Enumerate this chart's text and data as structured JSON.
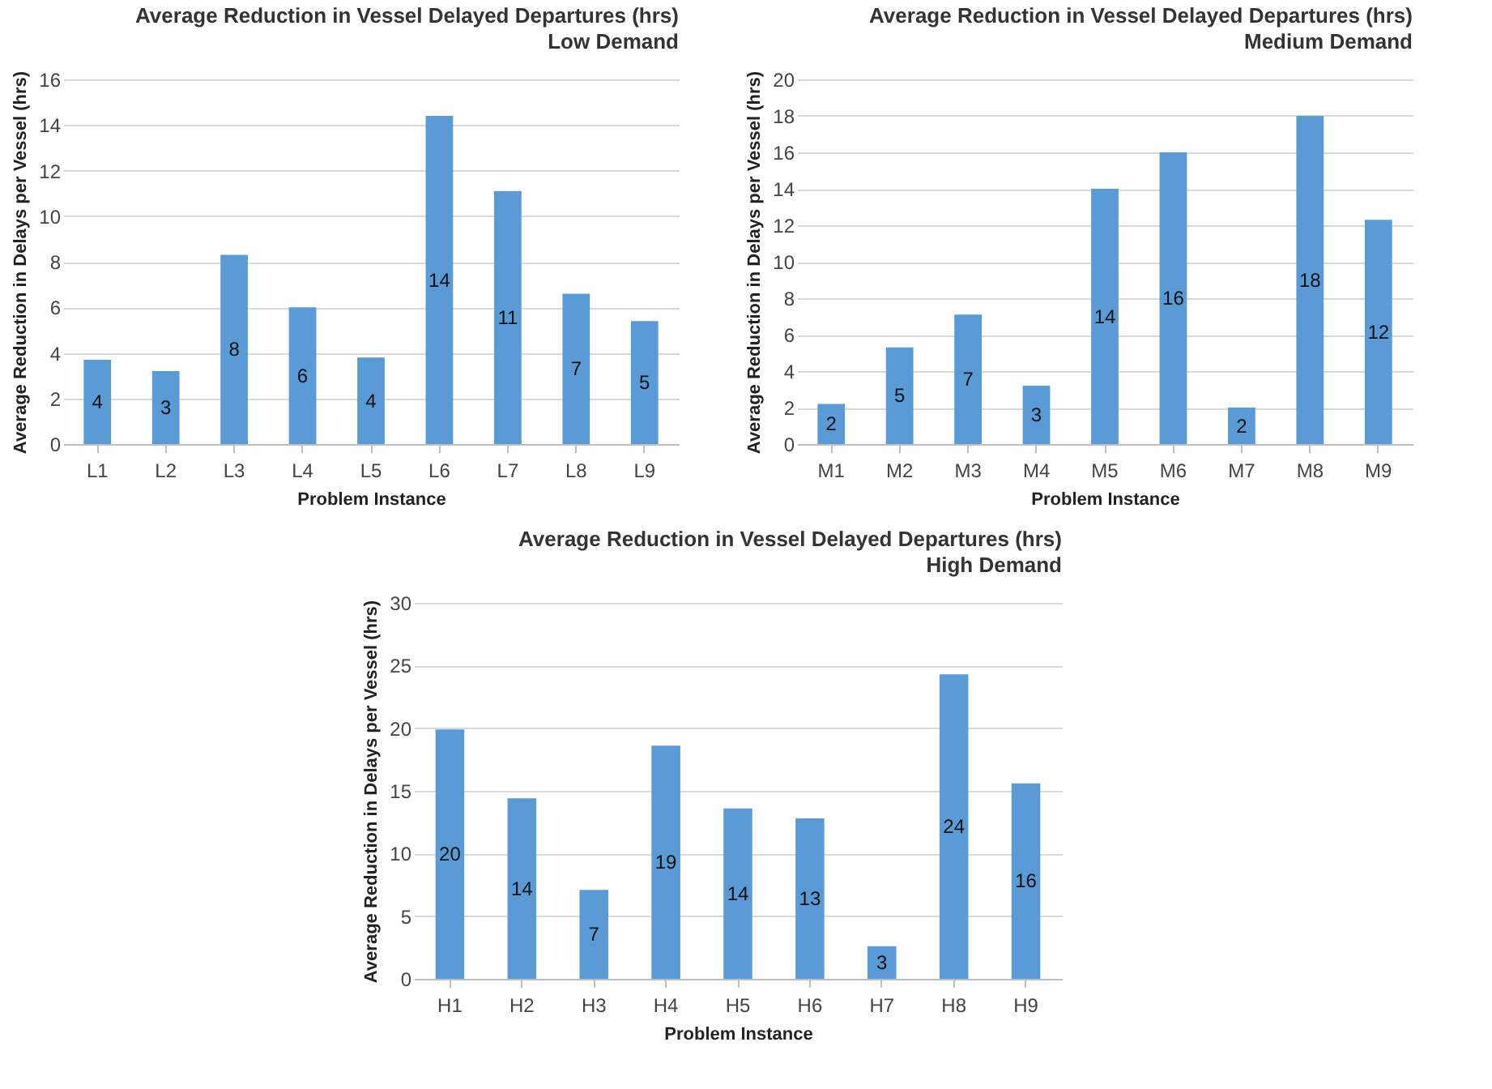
{
  "chart_data": [
    {
      "type": "bar",
      "title": "Average Reduction in Vessel Delayed Departures (hrs)",
      "subtitle": "Low Demand",
      "xlabel": "Problem Instance",
      "ylabel": "Average Reduction in Delays per Vessel (hrs)",
      "categories": [
        "L1",
        "L2",
        "L3",
        "L4",
        "L5",
        "L6",
        "L7",
        "L8",
        "L9"
      ],
      "values": [
        3.7,
        3.2,
        8.3,
        6.0,
        3.8,
        14.4,
        11.1,
        6.6,
        5.4
      ],
      "value_labels": [
        "4",
        "3",
        "8",
        "6",
        "4",
        "14",
        "11",
        "7",
        "5"
      ],
      "color": "#5b9bd5",
      "ylim": [
        0,
        16
      ],
      "yticks": [
        0,
        2,
        4,
        6,
        8,
        10,
        12,
        14,
        16
      ],
      "grid": "y"
    },
    {
      "type": "bar",
      "title": "Average Reduction in Vessel Delayed Departures (hrs)",
      "subtitle": "Medium Demand",
      "xlabel": "Problem Instance",
      "ylabel": "Average Reduction in Delays per Vessel (hrs)",
      "categories": [
        "M1",
        "M2",
        "M3",
        "M4",
        "M5",
        "M6",
        "M7",
        "M8",
        "M9"
      ],
      "values": [
        2.2,
        5.3,
        7.1,
        3.2,
        14.0,
        16.0,
        2.0,
        18.0,
        12.3
      ],
      "value_labels": [
        "2",
        "5",
        "7",
        "3",
        "14",
        "16",
        "2",
        "18",
        "12"
      ],
      "color": "#5b9bd5",
      "ylim": [
        0,
        20
      ],
      "yticks": [
        0,
        2,
        4,
        6,
        8,
        10,
        12,
        14,
        16,
        18,
        20
      ],
      "grid": "y"
    },
    {
      "type": "bar",
      "title": "Average Reduction in Vessel Delayed Departures (hrs)",
      "subtitle": "High Demand",
      "xlabel": "Problem Instance",
      "ylabel": "Average Reduction in Delays per Vessel (hrs)",
      "categories": [
        "H1",
        "H2",
        "H3",
        "H4",
        "H5",
        "H6",
        "H7",
        "H8",
        "H9"
      ],
      "values": [
        19.9,
        14.4,
        7.1,
        18.6,
        13.6,
        12.8,
        2.6,
        24.3,
        15.6
      ],
      "value_labels": [
        "20",
        "14",
        "7",
        "19",
        "14",
        "13",
        "3",
        "24",
        "16"
      ],
      "color": "#5b9bd5",
      "ylim": [
        0,
        30
      ],
      "yticks": [
        0,
        5,
        10,
        15,
        20,
        25,
        30
      ],
      "grid": "y"
    }
  ]
}
